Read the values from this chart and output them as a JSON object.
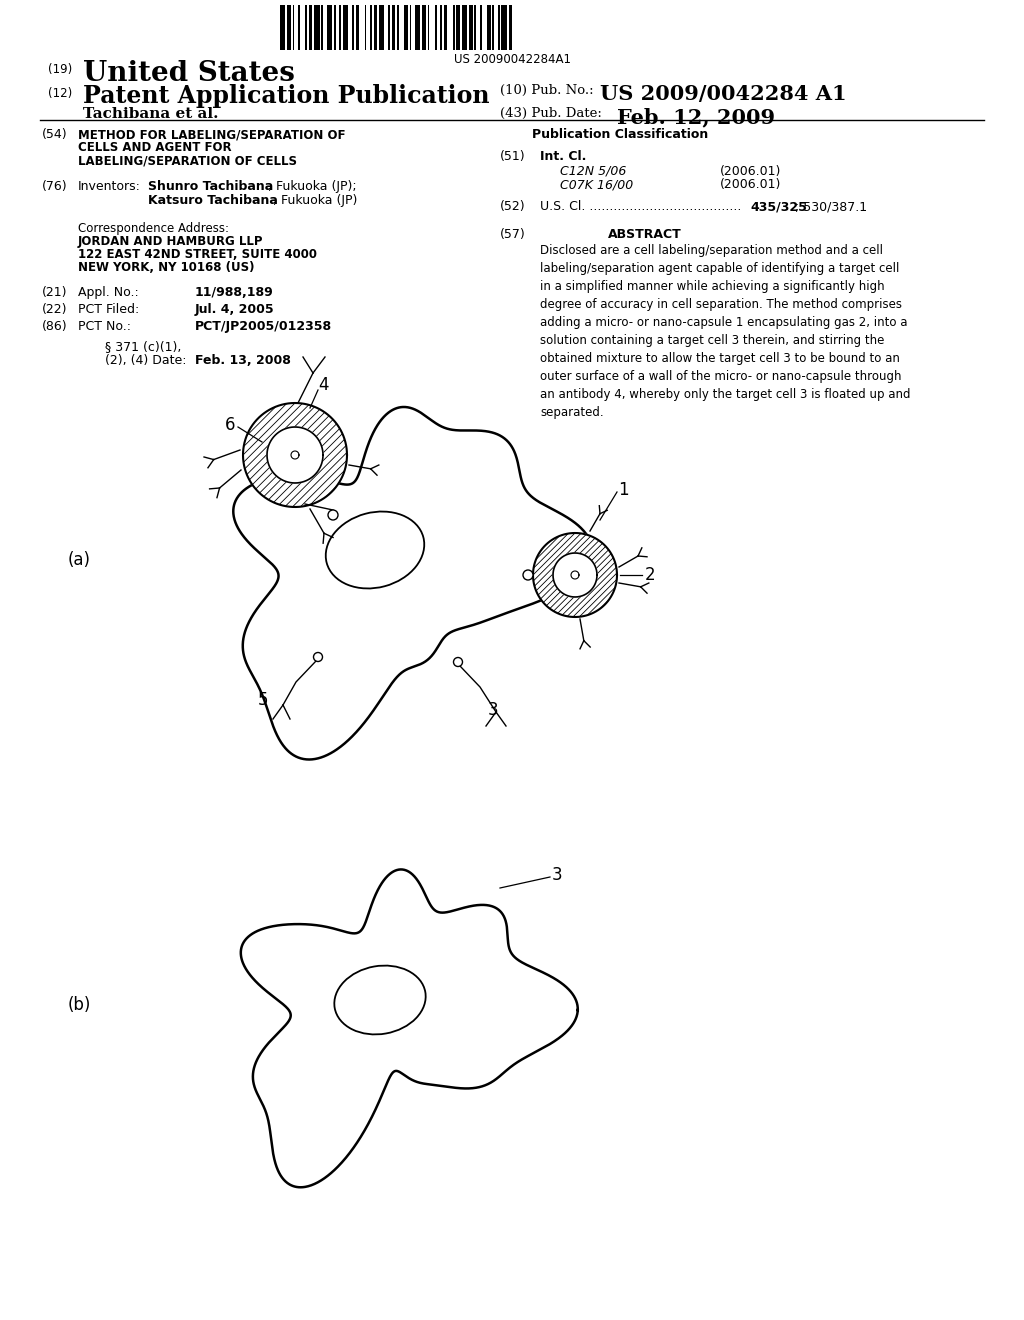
{
  "bg_color": "#ffffff",
  "barcode_text": "US 20090042284A1",
  "label_a": "(a)",
  "label_b": "(b)"
}
